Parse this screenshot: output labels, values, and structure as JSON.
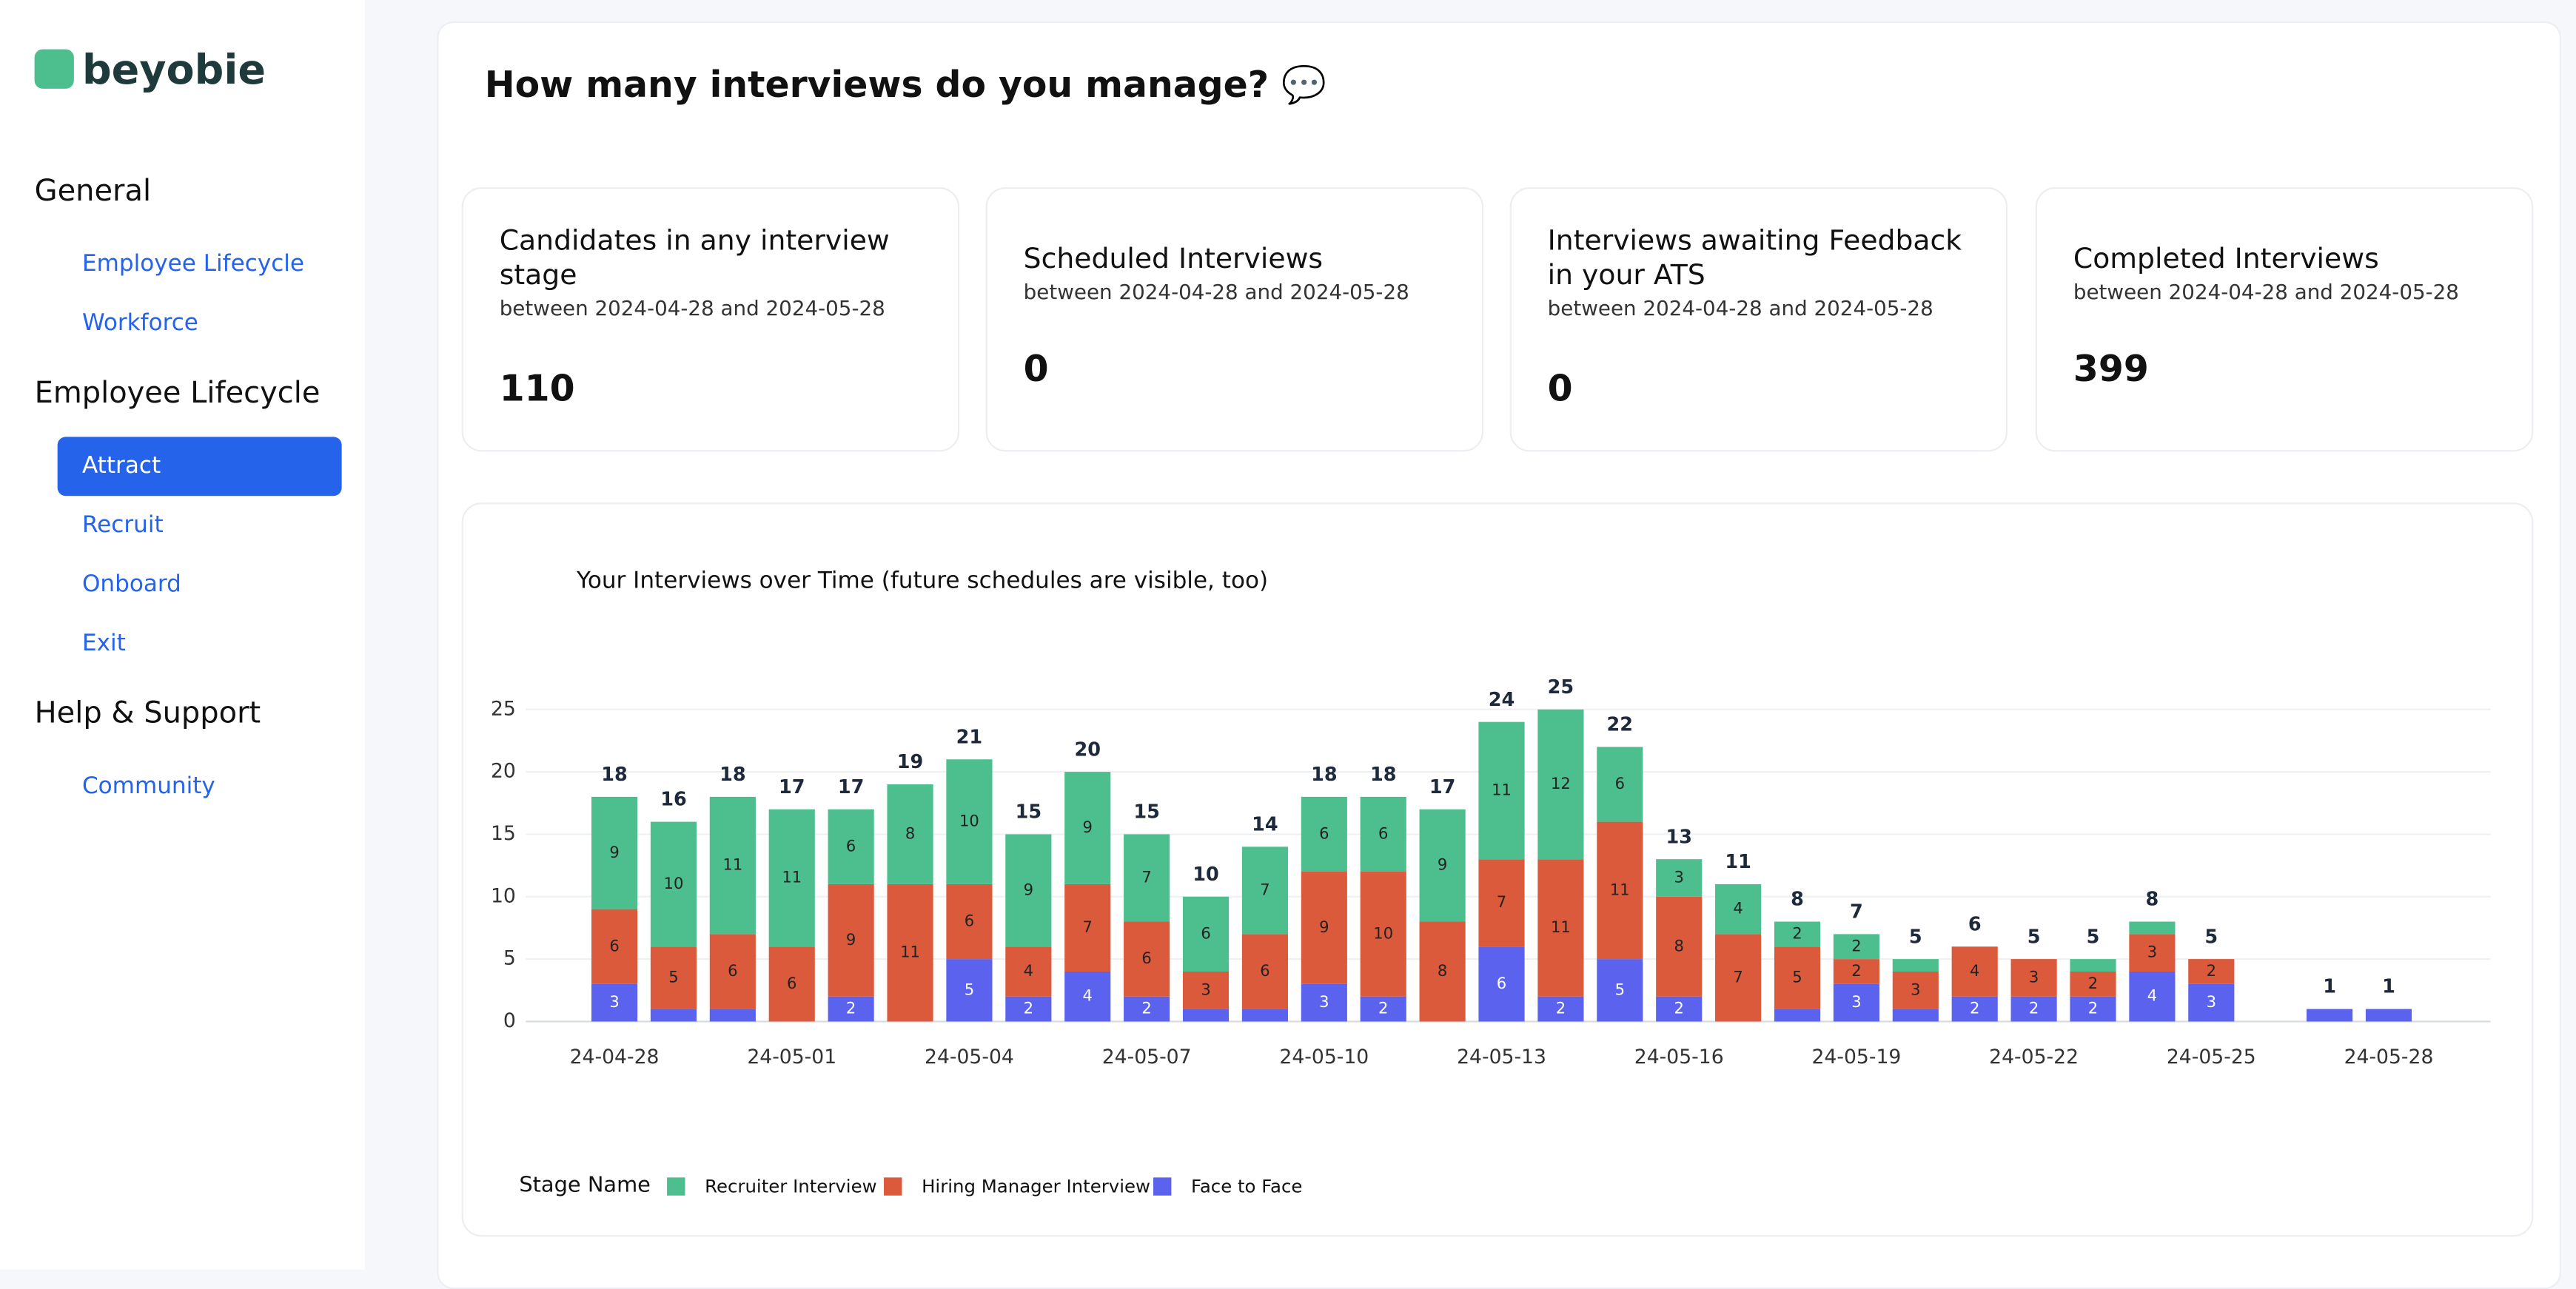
{
  "sidebar": {
    "logo": "beyobie",
    "sections": [
      {
        "title": "General",
        "items": [
          "Employee Lifecycle",
          "Workforce"
        ]
      },
      {
        "title": "Employee Lifecycle",
        "items": [
          "Attract",
          "Recruit",
          "Onboard",
          "Exit"
        ]
      },
      {
        "title": "Help & Support",
        "items": [
          "Community"
        ]
      }
    ]
  },
  "header": {
    "title": "How many interviews do you manage? 💬"
  },
  "cards": [
    {
      "title": "Candidates in any interview stage",
      "subtitle": "between 2024-04-28 and 2024-05-28",
      "value": "110"
    },
    {
      "title": "Scheduled Interviews",
      "subtitle": "between 2024-04-28 and 2024-05-28",
      "value": "0"
    },
    {
      "title": "Interviews awaiting Feedback in your ATS",
      "subtitle": "between 2024-04-28 and 2024-05-28",
      "value": "0"
    },
    {
      "title": "Completed Interviews",
      "subtitle": "between 2024-04-28 and 2024-05-28",
      "value": "399"
    }
  ],
  "chart_data": {
    "type": "stacked_bar",
    "title": "Your Interviews over Time (future schedules are visible, too)",
    "legend_title": "Stage Name",
    "categories": [
      "24-04-28",
      null,
      null,
      "24-05-01",
      null,
      null,
      "24-05-04",
      null,
      null,
      "24-05-07",
      null,
      null,
      "24-05-10",
      null,
      null,
      "24-05-13",
      null,
      null,
      "24-05-16",
      null,
      null,
      "24-05-19",
      null,
      null,
      "24-05-22",
      null,
      null,
      "24-05-25",
      null,
      null,
      "24-05-28"
    ],
    "series": [
      {
        "name": "Face to Face",
        "color": "#5b63ee",
        "values": [
          3,
          1,
          1,
          0,
          2,
          0,
          5,
          2,
          4,
          2,
          1,
          1,
          3,
          2,
          0,
          6,
          2,
          5,
          2,
          0,
          1,
          3,
          1,
          2,
          2,
          2,
          4,
          3,
          null,
          1,
          1
        ]
      },
      {
        "name": "Hiring Manager Interview",
        "color": "#dc5a3c",
        "values": [
          6,
          5,
          6,
          6,
          9,
          11,
          6,
          4,
          7,
          6,
          3,
          6,
          9,
          10,
          8,
          7,
          11,
          11,
          8,
          7,
          5,
          2,
          3,
          4,
          3,
          2,
          3,
          2,
          null,
          0,
          0
        ]
      },
      {
        "name": "Recruiter Interview",
        "color": "#4dbf8e",
        "values": [
          9,
          10,
          11,
          11,
          6,
          8,
          10,
          9,
          9,
          7,
          6,
          7,
          6,
          6,
          9,
          11,
          12,
          6,
          3,
          4,
          2,
          2,
          1,
          0,
          0,
          1,
          1,
          0,
          null,
          0,
          0
        ]
      }
    ],
    "totals": [
      18,
      16,
      18,
      17,
      17,
      19,
      21,
      15,
      20,
      15,
      10,
      14,
      18,
      18,
      17,
      24,
      25,
      22,
      13,
      11,
      8,
      7,
      5,
      6,
      5,
      5,
      8,
      5,
      null,
      1,
      1
    ],
    "ylim": [
      0,
      27
    ],
    "yticks": [
      0,
      5,
      10,
      15,
      20,
      25
    ],
    "grid": true
  }
}
